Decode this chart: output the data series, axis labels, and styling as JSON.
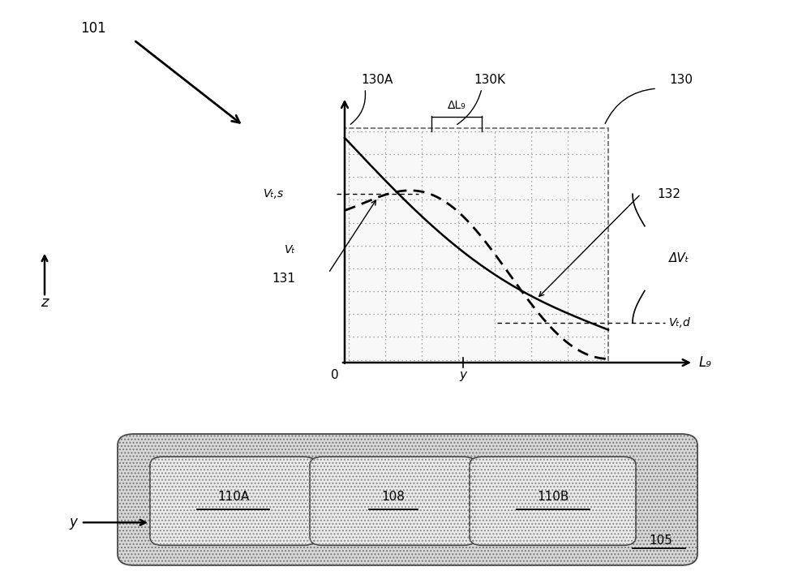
{
  "bg_color": "#ffffff",
  "fig_width": 10.0,
  "fig_height": 7.04,
  "label_130A": "130A",
  "label_130K": "130K",
  "label_130": "130",
  "label_132": "132",
  "label_131": "131",
  "label_delta_Lg": "ΔL₉",
  "label_delta_Vt": "ΔVₜ",
  "label_Vts": "Vₜ,s",
  "label_Vt": "Vₜ",
  "label_Vtd": "Vₜ,d",
  "label_101": "101",
  "label_105": "105",
  "label_108": "108",
  "label_110A": "110A",
  "label_110B": "110B",
  "label_Lg": "L₉",
  "label_0": "0",
  "label_y": "y",
  "label_z": "z"
}
